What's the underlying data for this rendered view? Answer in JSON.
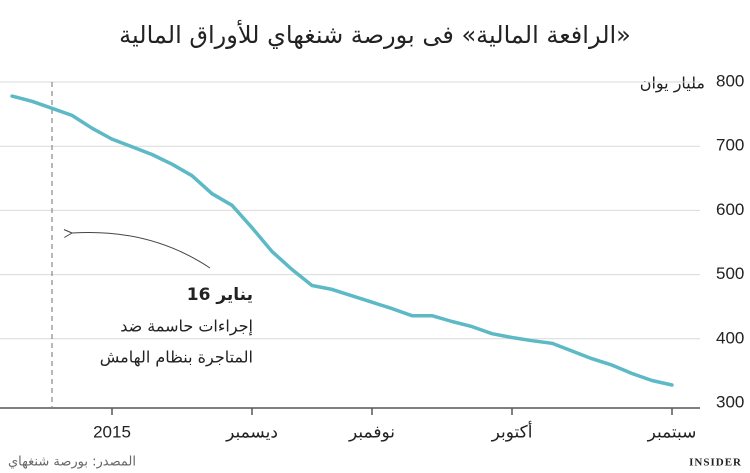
{
  "chart_data": {
    "type": "line",
    "title": "«الرافعة المالية» فى بورصة شنغهاي للأوراق المالية",
    "y_label": "مليار يوان",
    "source": "المصدر: بورصة شنغهاي",
    "brand": "INSIDER",
    "x_reversed": true,
    "categories": [
      "سبتمبر",
      null,
      null,
      null,
      null,
      null,
      null,
      null,
      "أكتوبر",
      null,
      null,
      null,
      null,
      null,
      null,
      "نوفمبر",
      null,
      null,
      null,
      null,
      null,
      "ديسمبر",
      null,
      null,
      null,
      null,
      null,
      null,
      "2015",
      null,
      null,
      null,
      null,
      null
    ],
    "series": [
      {
        "name": "مليار يوان",
        "color": "#5cb9c5",
        "values": [
          328,
          335,
          346,
          359,
          369,
          381,
          393,
          397,
          402,
          408,
          419,
          427,
          436,
          436,
          447,
          457,
          467,
          477,
          483,
          508,
          536,
          573,
          608,
          626,
          654,
          672,
          687,
          699,
          711,
          728,
          748,
          759,
          770,
          778
        ]
      }
    ],
    "ylim": [
      300,
      800
    ],
    "yticks": [
      300,
      400,
      500,
      600,
      700,
      800
    ],
    "grid": true,
    "reference_line": {
      "index": 31
    },
    "annotation": {
      "date": "16 يناير",
      "lines": [
        "إجراءات حاسمة ضد",
        "المتاجرة بنظام الهامش"
      ]
    }
  }
}
